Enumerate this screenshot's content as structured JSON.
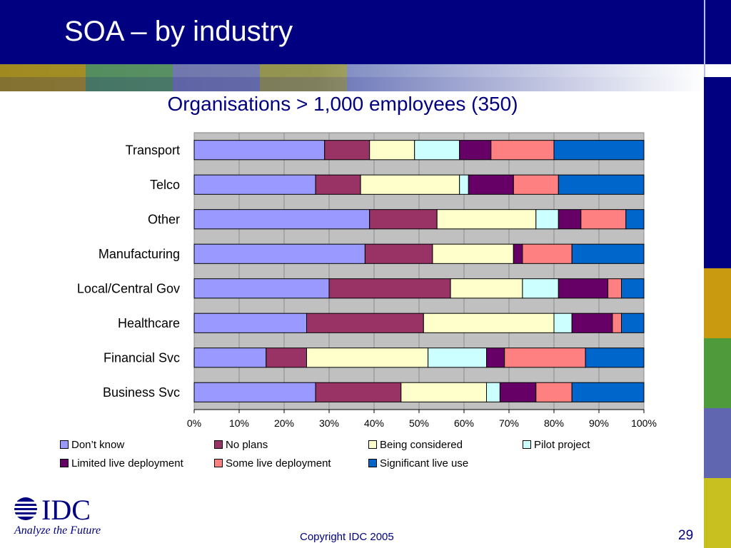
{
  "slide": {
    "title": "SOA – by industry",
    "footer": "Copyright IDC 2005",
    "page_number": "29"
  },
  "logo": {
    "text": "IDC",
    "tagline": "Analyze the Future"
  },
  "colors": {
    "header": "#000080",
    "title_text": "#ffffff",
    "accent_text": "#000080",
    "plot_background": "#c0c0c0"
  },
  "chart_data": {
    "type": "bar",
    "orientation": "horizontal",
    "stacked": "percent",
    "title": "Organisations > 1,000 employees (350)",
    "categories": [
      "Transport",
      "Telco",
      "Other",
      "Manufacturing",
      "Local/Central Gov",
      "Healthcare",
      "Financial Svc",
      "Business Svc"
    ],
    "xlim": [
      0,
      100
    ],
    "x_ticks": [
      "0%",
      "10%",
      "20%",
      "30%",
      "40%",
      "50%",
      "60%",
      "70%",
      "80%",
      "90%",
      "100%"
    ],
    "grid": "vertical",
    "legend_position": "bottom",
    "series": [
      {
        "name": "Don’t know",
        "color": "#9999ff",
        "values": [
          29,
          27,
          39,
          38,
          30,
          25,
          16,
          27
        ]
      },
      {
        "name": "No plans",
        "color": "#993366",
        "values": [
          10,
          10,
          15,
          15,
          27,
          26,
          9,
          19
        ]
      },
      {
        "name": "Being considered",
        "color": "#ffffcc",
        "values": [
          10,
          22,
          22,
          18,
          16,
          29,
          27,
          19
        ]
      },
      {
        "name": "Pilot project",
        "color": "#ccffff",
        "values": [
          10,
          2,
          5,
          0,
          8,
          4,
          13,
          3
        ]
      },
      {
        "name": "Limited live deployment",
        "color": "#660066",
        "values": [
          7,
          10,
          5,
          2,
          11,
          9,
          4,
          8
        ]
      },
      {
        "name": "Some live deployment",
        "color": "#ff8080",
        "values": [
          14,
          10,
          10,
          11,
          3,
          2,
          18,
          8
        ]
      },
      {
        "name": "Significant live use",
        "color": "#0066cc",
        "values": [
          20,
          19,
          4,
          16,
          5,
          5,
          13,
          16
        ]
      }
    ]
  }
}
